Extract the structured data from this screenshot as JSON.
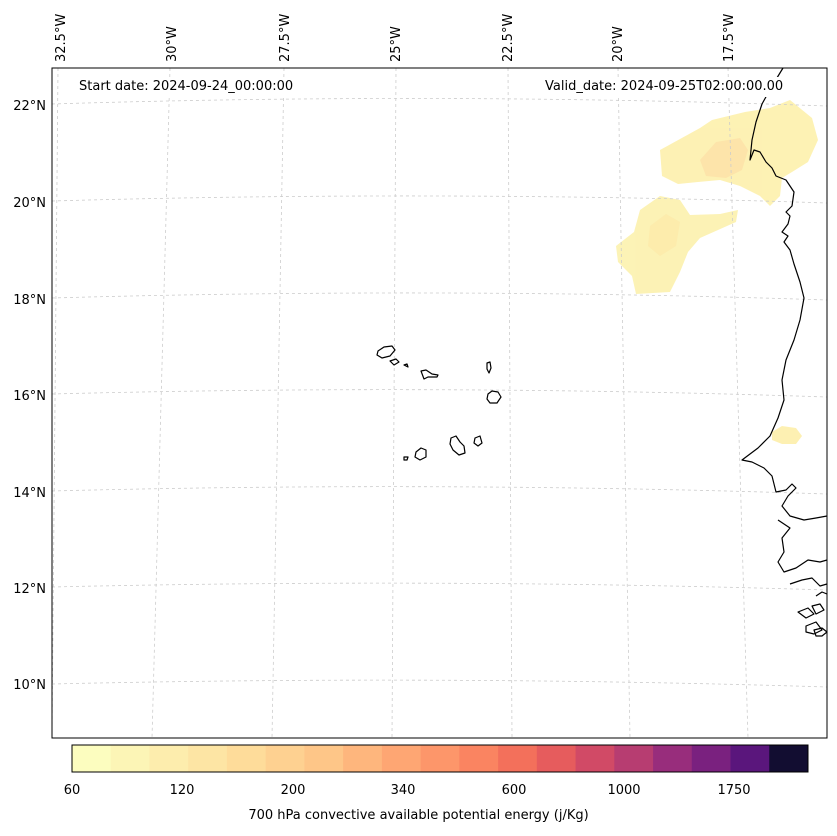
{
  "map": {
    "start_date": "Start date: 2024-09-24_00:00:00",
    "valid_date": "Valid_date: 2024-09-25T02:00:00.00",
    "lat_labels": [
      "22°N",
      "20°N",
      "18°N",
      "16°N",
      "14°N",
      "12°N",
      "10°N"
    ],
    "lon_labels": [
      "32.5°W",
      "30°W",
      "27.5°W",
      "25°W",
      "22.5°W",
      "20°W",
      "17.5°W"
    ],
    "features": {
      "coastline": "west-africa-coast",
      "islands": "cape-verde-islands",
      "field": "cape-shading-yellow"
    }
  },
  "colorbar": {
    "label": "700 hPa convective available potential energy (j/Kg)",
    "ticks": [
      "60",
      "120",
      "200",
      "340",
      "600",
      "1000",
      "1750"
    ],
    "colors": [
      "#fcfdbf",
      "#fcf5b6",
      "#fdedad",
      "#fde5a4",
      "#fedc9a",
      "#fed191",
      "#fec688",
      "#feb67d",
      "#fea673",
      "#fd966a",
      "#fa8461",
      "#f3705b",
      "#e65c5d",
      "#d14a66",
      "#b73d71",
      "#982d7c",
      "#7a217f",
      "#5a167c",
      "#120d31"
    ]
  }
}
